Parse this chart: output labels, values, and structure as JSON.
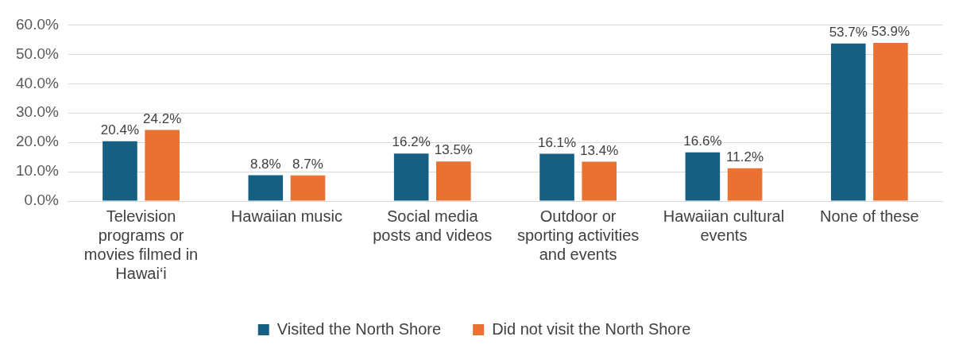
{
  "chart_data": {
    "type": "bar",
    "categories": [
      "Television programs or movies filmed in Hawai‘i",
      "Hawaiian music",
      "Social media posts and videos",
      "Outdoor or sporting activities and events",
      "Hawaiian cultural events",
      "None of these"
    ],
    "series": [
      {
        "name": "Visited the North Shore",
        "color": "#156082",
        "values": [
          20.4,
          8.8,
          16.2,
          16.1,
          16.6,
          53.7
        ],
        "value_labels": [
          "20.4%",
          "8.8%",
          "16.2%",
          "16.1%",
          "16.6%",
          "53.7%"
        ]
      },
      {
        "name": "Did not visit the North Shore",
        "color": "#e97132",
        "values": [
          24.2,
          8.7,
          13.5,
          13.4,
          11.2,
          53.9
        ],
        "value_labels": [
          "24.2%",
          "8.7%",
          "13.5%",
          "13.4%",
          "11.2%",
          "53.9%"
        ]
      }
    ],
    "ylim": [
      0,
      60
    ],
    "yticks": [
      {
        "value": 0,
        "label": "0.0%"
      },
      {
        "value": 10,
        "label": "10.0%"
      },
      {
        "value": 20,
        "label": "20.0%"
      },
      {
        "value": 30,
        "label": "30.0%"
      },
      {
        "value": 40,
        "label": "40.0%"
      },
      {
        "value": 50,
        "label": "50.0%"
      },
      {
        "value": 60,
        "label": "60.0%"
      }
    ],
    "grid": "y",
    "legend": "bottom"
  }
}
